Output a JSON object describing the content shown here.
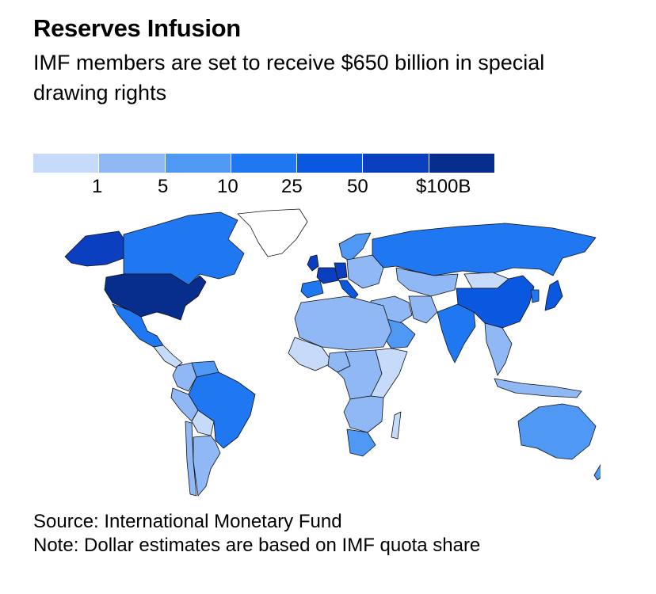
{
  "header": {
    "title": "Reserves Infusion",
    "subtitle": "IMF members are set to receive $650 billion in special drawing rights"
  },
  "legend": {
    "colors": [
      "#c6dbfa",
      "#8fb8f5",
      "#4f98f3",
      "#1f78f2",
      "#0a58e0",
      "#0a3fc0",
      "#072e8c"
    ],
    "ticks": [
      "1",
      "5",
      "10",
      "25",
      "50",
      "$100B"
    ]
  },
  "map": {
    "land_color": "#c6dbfa",
    "border_color": "#111111",
    "ice_color": "#ffffff",
    "regions": [
      {
        "name": "Canada",
        "color": "#1f78f2"
      },
      {
        "name": "Alaska",
        "color": "#0a3fc0"
      },
      {
        "name": "Greenland",
        "color": "#ffffff"
      },
      {
        "name": "United States",
        "color": "#072e8c"
      },
      {
        "name": "Mexico",
        "color": "#1f78f2"
      },
      {
        "name": "Central America",
        "color": "#c6dbfa"
      },
      {
        "name": "Brazil",
        "color": "#1f78f2"
      },
      {
        "name": "Colombia",
        "color": "#8fb8f5"
      },
      {
        "name": "Venezuela",
        "color": "#4f98f3"
      },
      {
        "name": "Peru",
        "color": "#8fb8f5"
      },
      {
        "name": "Bolivia",
        "color": "#c6dbfa"
      },
      {
        "name": "Argentina",
        "color": "#8fb8f5"
      },
      {
        "name": "Chile",
        "color": "#8fb8f5"
      },
      {
        "name": "UK",
        "color": "#0a3fc0"
      },
      {
        "name": "France",
        "color": "#0a3fc0"
      },
      {
        "name": "Germany",
        "color": "#0a3fc0"
      },
      {
        "name": "Spain",
        "color": "#1f78f2"
      },
      {
        "name": "Italy",
        "color": "#0a58e0"
      },
      {
        "name": "Scandinavia",
        "color": "#4f98f3"
      },
      {
        "name": "Eastern Europe",
        "color": "#8fb8f5"
      },
      {
        "name": "Russia",
        "color": "#1f78f2"
      },
      {
        "name": "Kazakhstan",
        "color": "#8fb8f5"
      },
      {
        "name": "Mongolia",
        "color": "#c6dbfa"
      },
      {
        "name": "China",
        "color": "#0a58e0"
      },
      {
        "name": "Japan",
        "color": "#0a58e0"
      },
      {
        "name": "Korea",
        "color": "#1f78f2"
      },
      {
        "name": "India",
        "color": "#1f78f2"
      },
      {
        "name": "Middle East",
        "color": "#8fb8f5"
      },
      {
        "name": "Saudi Arabia",
        "color": "#4f98f3"
      },
      {
        "name": "Iran",
        "color": "#8fb8f5"
      },
      {
        "name": "Southeast Asia",
        "color": "#8fb8f5"
      },
      {
        "name": "Indonesia",
        "color": "#8fb8f5"
      },
      {
        "name": "Australia",
        "color": "#4f98f3"
      },
      {
        "name": "New Zealand",
        "color": "#4f98f3"
      },
      {
        "name": "North Africa",
        "color": "#8fb8f5"
      },
      {
        "name": "West Africa",
        "color": "#c6dbfa"
      },
      {
        "name": "Nigeria",
        "color": "#8fb8f5"
      },
      {
        "name": "Central Africa",
        "color": "#8fb8f5"
      },
      {
        "name": "East Africa",
        "color": "#c6dbfa"
      },
      {
        "name": "Southern Africa",
        "color": "#8fb8f5"
      },
      {
        "name": "South Africa",
        "color": "#4f98f3"
      }
    ]
  },
  "footer": {
    "source": "Source: International Monetary Fund",
    "note": "Note: Dollar estimates are based on IMF quota share"
  }
}
